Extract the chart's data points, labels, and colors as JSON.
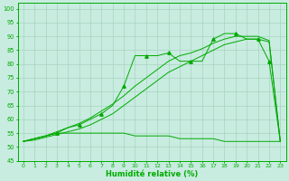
{
  "xlabel": "Humidité relative (%)",
  "background_color": "#c8ece0",
  "grid_color": "#a8d4c0",
  "line_color": "#00aa00",
  "xlim": [
    -0.5,
    23.5
  ],
  "ylim": [
    45,
    102
  ],
  "yticks": [
    45,
    50,
    55,
    60,
    65,
    70,
    75,
    80,
    85,
    90,
    95,
    100
  ],
  "xticks": [
    0,
    1,
    2,
    3,
    4,
    5,
    6,
    7,
    8,
    9,
    10,
    11,
    12,
    13,
    14,
    15,
    16,
    17,
    18,
    19,
    20,
    21,
    22,
    23
  ],
  "marked_y": [
    52,
    53,
    54,
    55,
    57,
    58,
    60,
    62,
    65,
    72,
    83,
    83,
    83,
    84,
    81,
    81,
    81,
    89,
    91,
    91,
    89,
    89,
    81,
    52
  ],
  "trend1_y": [
    52,
    52.5,
    53.5,
    54.5,
    55.5,
    56.5,
    58,
    60,
    62,
    65,
    68,
    71,
    74,
    77,
    79,
    81,
    83,
    85,
    87,
    88,
    89,
    89,
    88,
    52
  ],
  "trend2_y": [
    52,
    53,
    54,
    55.5,
    57,
    58.5,
    60.5,
    63,
    65.5,
    68.5,
    72,
    75,
    78,
    81,
    83,
    84,
    85.5,
    87.5,
    89,
    90,
    90,
    90,
    88.5,
    52
  ],
  "flat_y": [
    52,
    53,
    54,
    55,
    55,
    55,
    55,
    55,
    55,
    55,
    54,
    54,
    54,
    54,
    53,
    53,
    53,
    53,
    52,
    52,
    52,
    52,
    52,
    52
  ]
}
